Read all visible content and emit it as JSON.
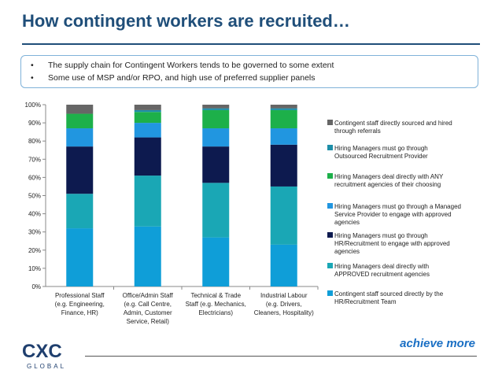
{
  "title": "How contingent workers are recruited…",
  "bullets": [
    "The supply chain for Contingent Workers tends to be governed to some extent",
    "Some use of MSP and/or RPO, and high use of preferred supplier panels"
  ],
  "bullet_symbol": "•",
  "logo": {
    "text": "CXC",
    "sub": "GLOBAL",
    "icon": "cxc-logo-icon"
  },
  "tagline": "achieve more",
  "chart_data": {
    "type": "bar",
    "stacked": true,
    "ylim": [
      0,
      100
    ],
    "yticks": [
      "0%",
      "10%",
      "20%",
      "30%",
      "40%",
      "50%",
      "60%",
      "70%",
      "80%",
      "90%",
      "100%"
    ],
    "grid": false,
    "legend_position": "right",
    "categories": [
      [
        "Professional Staff",
        "(e.g. Engineering,",
        "Finance, HR)"
      ],
      [
        "Office/Admin Staff",
        "(e.g. Call Centre,",
        "Admin, Customer",
        "Service, Retail)"
      ],
      [
        "Technical & Trade",
        "Staff (e.g. Mechanics,",
        "Electricians)"
      ],
      [
        "Industrial Labour",
        "(e.g. Drivers,",
        "Cleaners, Hospitality)"
      ]
    ],
    "series": [
      {
        "name": "Contingent staff sourced directly by the HR/Recruitment Team",
        "legend_lines": [
          "Contingent staff sourced directly by the",
          "HR/Recruitment Team"
        ],
        "color": "#0f9ed8",
        "values": [
          32,
          33,
          27,
          23
        ]
      },
      {
        "name": "Hiring Managers deal directly with APPROVED recruitment agencies",
        "legend_lines": [
          "Hiring Managers deal directly with",
          "APPROVED recruitment agencies"
        ],
        "color": "#1aa7b5",
        "values": [
          19,
          28,
          30,
          32
        ]
      },
      {
        "name": "Hiring Managers must go through HR/Recruitment to engage with approved agencies",
        "legend_lines": [
          "Hiring Managers must go through",
          "HR/Recruitment to engage with approved",
          "agencies"
        ],
        "color": "#0d1a4f",
        "values": [
          26,
          21,
          20,
          23
        ]
      },
      {
        "name": "Hiring Managers must go through a Managed Service Provider to engage with approved agencies",
        "legend_lines": [
          "Hiring Managers must go through a Managed",
          "Service Provider to engage with approved",
          "agencies"
        ],
        "color": "#2196e0",
        "values": [
          10,
          8,
          10,
          9
        ]
      },
      {
        "name": "Hiring Managers deal directly with ANY recruitment agencies of their choosing",
        "legend_lines": [
          "Hiring Managers deal directly with ANY",
          "recruitment agencies of their choosing"
        ],
        "color": "#1db04a",
        "values": [
          8,
          6,
          10,
          10
        ]
      },
      {
        "name": "Hiring Managers must go through Outsourced Recruitment Provider",
        "legend_lines": [
          "Hiring Managers must go through",
          "Outsourced Recruitment Provider"
        ],
        "color": "#1d8ea8",
        "values": [
          0,
          1,
          1,
          1
        ]
      },
      {
        "name": "Contingent staff directly sourced and hired through referrals",
        "legend_lines": [
          "Contingent staff directly sourced and hired",
          "through referrals"
        ],
        "color": "#666666",
        "values": [
          5,
          3,
          2,
          2
        ]
      }
    ],
    "legend_order": [
      6,
      5,
      4,
      3,
      2,
      1,
      0
    ]
  }
}
